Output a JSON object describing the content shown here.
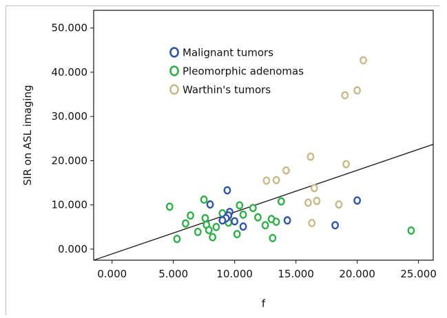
{
  "chart_data": {
    "type": "scatter",
    "xlabel": "f",
    "ylabel": "SIR on ASL imaging",
    "xlim": [
      -1.5,
      26.2
    ],
    "ylim": [
      -2.5,
      54.0
    ],
    "x_ticks": [
      "0.000",
      "5.000",
      "10.000",
      "15.000",
      "20.000",
      "25.000"
    ],
    "x_tick_values": [
      0,
      5,
      10,
      15,
      20,
      25
    ],
    "y_ticks": [
      "0.000",
      "10.000",
      "20.000",
      "30.000",
      "40.000",
      "50.000"
    ],
    "y_tick_values": [
      0,
      10,
      20,
      30,
      40,
      50
    ],
    "legend_position": "top-center",
    "grid": false,
    "series": [
      {
        "name": "Malignant tumors",
        "color": "#2e55a6",
        "points": [
          [
            9.4,
            13.3
          ],
          [
            8.0,
            10.1
          ],
          [
            9.6,
            8.4
          ],
          [
            9.5,
            7.6
          ],
          [
            9.3,
            7.0
          ],
          [
            9.0,
            6.5
          ],
          [
            10.0,
            6.3
          ],
          [
            10.7,
            5.1
          ],
          [
            14.3,
            6.5
          ],
          [
            18.2,
            5.4
          ],
          [
            20.0,
            11.0
          ]
        ]
      },
      {
        "name": "Pleomorphic adenomas",
        "color": "#2fae49",
        "points": [
          [
            4.7,
            9.6
          ],
          [
            5.3,
            2.3
          ],
          [
            6.0,
            5.8
          ],
          [
            6.4,
            7.6
          ],
          [
            7.0,
            3.9
          ],
          [
            7.5,
            11.2
          ],
          [
            7.6,
            7.0
          ],
          [
            7.7,
            5.5
          ],
          [
            7.9,
            4.3
          ],
          [
            8.2,
            2.7
          ],
          [
            8.5,
            5.0
          ],
          [
            9.0,
            8.1
          ],
          [
            9.5,
            6.0
          ],
          [
            10.2,
            3.4
          ],
          [
            10.4,
            9.9
          ],
          [
            10.7,
            7.8
          ],
          [
            11.5,
            9.3
          ],
          [
            11.9,
            7.2
          ],
          [
            12.5,
            5.4
          ],
          [
            13.0,
            6.8
          ],
          [
            13.1,
            2.5
          ],
          [
            13.4,
            6.2
          ],
          [
            13.8,
            10.8
          ],
          [
            24.4,
            4.2
          ]
        ]
      },
      {
        "name": "Warthin's tumors",
        "color": "#c8b98a",
        "points": [
          [
            12.6,
            15.5
          ],
          [
            13.4,
            15.6
          ],
          [
            14.2,
            17.8
          ],
          [
            16.0,
            10.5
          ],
          [
            16.2,
            20.9
          ],
          [
            16.3,
            5.9
          ],
          [
            16.5,
            13.8
          ],
          [
            16.7,
            10.9
          ],
          [
            18.5,
            10.1
          ],
          [
            19.0,
            34.8
          ],
          [
            19.1,
            19.2
          ],
          [
            20.0,
            35.9
          ],
          [
            20.5,
            42.7
          ]
        ]
      }
    ],
    "fit_line": {
      "x": [
        -1.5,
        26.2
      ],
      "y": [
        -2.5,
        23.7
      ],
      "color": "#222222"
    }
  }
}
